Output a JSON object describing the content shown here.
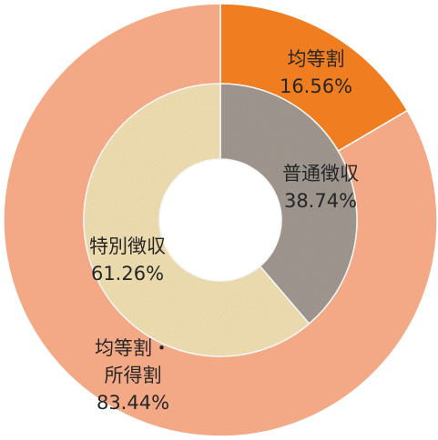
{
  "chart_data": {
    "type": "nested-donut",
    "rings": [
      {
        "categories": [
          "均等割",
          "均等割・所得割"
        ],
        "values": [
          16.56,
          83.44
        ],
        "value_labels": [
          "16.56%",
          "83.44%"
        ],
        "colors": [
          "#f07d1f",
          "#f4a986"
        ]
      },
      {
        "categories": [
          "普通徴収",
          "特別徴収"
        ],
        "values": [
          38.74,
          61.26
        ],
        "value_labels": [
          "38.74%",
          "61.26%"
        ],
        "colors": [
          "#a39a92",
          "#f3e2b4"
        ]
      }
    ]
  }
}
